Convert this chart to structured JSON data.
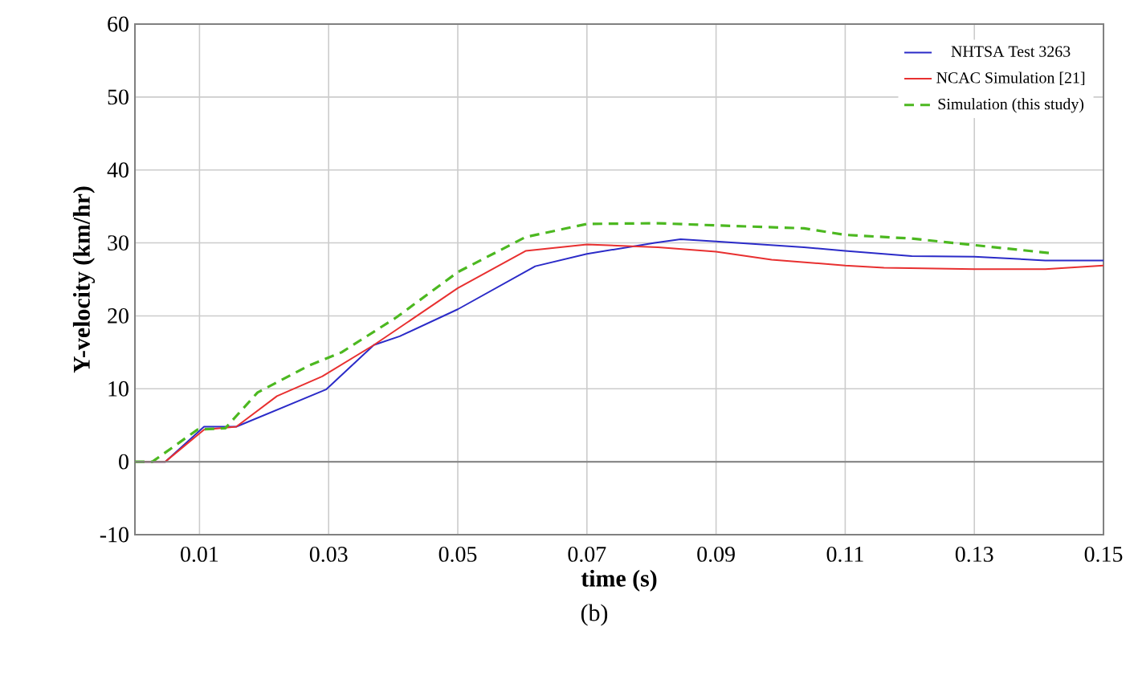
{
  "chart_data": {
    "type": "line",
    "xlabel": "time (s)",
    "ylabel": "Y-velocity (km/hr)",
    "annotations": [
      "(b)"
    ],
    "xlim": [
      0,
      0.15
    ],
    "ylim": [
      -10,
      60
    ],
    "xticks": [
      0.01,
      0.03,
      0.05,
      0.07,
      0.09,
      0.11,
      0.13,
      0.15
    ],
    "yticks": [
      -10,
      0,
      10,
      20,
      30,
      40,
      50,
      60
    ],
    "grid": true,
    "legend": "top right",
    "ref_lines": [
      {
        "axis": "y",
        "value": 0,
        "color": "#808080"
      }
    ],
    "series": [
      {
        "name": "NHTSA Test 3263",
        "color": "#2b2bc8",
        "line_style": "solid",
        "x": [
          0,
          0.0047,
          0.0107,
          0.0157,
          0.0296,
          0.037,
          0.041,
          0.05,
          0.062,
          0.07,
          0.0805,
          0.0845,
          0.09,
          0.1036,
          0.11,
          0.1203,
          0.13,
          0.141,
          0.15
        ],
        "values": [
          0,
          0,
          4.8,
          4.8,
          9.9,
          16,
          17.2,
          20.9,
          26.8,
          28.5,
          30,
          30.5,
          30.2,
          29.4,
          28.9,
          28.2,
          28.1,
          27.6,
          27.6
        ]
      },
      {
        "name": "NCAC Simulation [21]",
        "color": "#e83030",
        "line_style": "solid",
        "x": [
          0,
          0.0047,
          0.0107,
          0.0157,
          0.022,
          0.029,
          0.037,
          0.05,
          0.0605,
          0.07,
          0.081,
          0.09,
          0.0986,
          0.11,
          0.116,
          0.13,
          0.141,
          0.15
        ],
        "values": [
          0,
          0,
          4.4,
          4.8,
          9.0,
          11.7,
          16,
          23.8,
          28.9,
          29.8,
          29.4,
          28.8,
          27.7,
          26.9,
          26.6,
          26.4,
          26.4,
          26.9
        ]
      },
      {
        "name": "Simulation (this study)",
        "color": "#4cb820",
        "line_style": "dashed",
        "x": [
          0,
          0.0027,
          0.0097,
          0.014,
          0.019,
          0.027,
          0.032,
          0.0405,
          0.05,
          0.0605,
          0.07,
          0.081,
          0.09,
          0.1036,
          0.11,
          0.1203,
          0.13,
          0.1418
        ],
        "values": [
          0,
          0,
          4.4,
          4.6,
          9.5,
          13.2,
          15,
          19.8,
          26,
          30.8,
          32.6,
          32.7,
          32.4,
          32.0,
          31.1,
          30.6,
          29.7,
          28.6
        ]
      }
    ]
  }
}
